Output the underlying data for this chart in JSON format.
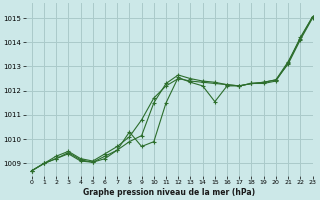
{
  "title": "Graphe pression niveau de la mer (hPa)",
  "background_color": "#cce8e8",
  "grid_color": "#aacaca",
  "line_color": "#2d6e2d",
  "xlim": [
    -0.5,
    23
  ],
  "ylim": [
    1008.5,
    1015.6
  ],
  "yticks": [
    1009,
    1010,
    1011,
    1012,
    1013,
    1014,
    1015
  ],
  "xticks": [
    0,
    1,
    2,
    3,
    4,
    5,
    6,
    7,
    8,
    9,
    10,
    11,
    12,
    13,
    14,
    15,
    16,
    17,
    18,
    19,
    20,
    21,
    22,
    23
  ],
  "series1": {
    "x": [
      0,
      1,
      2,
      3,
      4,
      5,
      6,
      7,
      8,
      9,
      10,
      11,
      12,
      13,
      14,
      15,
      16,
      17,
      18,
      19,
      20,
      21,
      22,
      23
    ],
    "y": [
      1008.7,
      1009.0,
      1009.3,
      1009.5,
      1009.2,
      1009.1,
      1009.4,
      1009.7,
      1010.1,
      1010.8,
      1011.7,
      1012.2,
      1012.5,
      1012.4,
      1012.35,
      1012.3,
      1012.25,
      1012.2,
      1012.3,
      1012.35,
      1012.45,
      1013.1,
      1014.1,
      1015.0
    ]
  },
  "series2": {
    "x": [
      0,
      1,
      2,
      3,
      4,
      5,
      6,
      7,
      8,
      9,
      10,
      11,
      12,
      13,
      14,
      15,
      16,
      17,
      18,
      19,
      20,
      21,
      22,
      23
    ],
    "y": [
      1008.7,
      1009.0,
      1009.2,
      1009.45,
      1009.15,
      1009.05,
      1009.2,
      1009.55,
      1009.9,
      1010.15,
      1011.5,
      1012.3,
      1012.65,
      1012.5,
      1012.4,
      1012.35,
      1012.25,
      1012.2,
      1012.3,
      1012.3,
      1012.4,
      1013.15,
      1014.2,
      1015.05
    ]
  },
  "series3": {
    "x": [
      0,
      1,
      2,
      3,
      4,
      5,
      6,
      7,
      8,
      9,
      10,
      11,
      12,
      13,
      14,
      15,
      16,
      17,
      18,
      19,
      20,
      21,
      22,
      23
    ],
    "y": [
      1008.7,
      1009.0,
      1009.2,
      1009.4,
      1009.1,
      1009.05,
      1009.3,
      1009.55,
      1010.3,
      1009.7,
      1009.9,
      1011.5,
      1012.55,
      1012.35,
      1012.2,
      1011.55,
      1012.2,
      1012.2,
      1012.3,
      1012.35,
      1012.45,
      1013.2,
      1014.15,
      1015.05
    ]
  }
}
